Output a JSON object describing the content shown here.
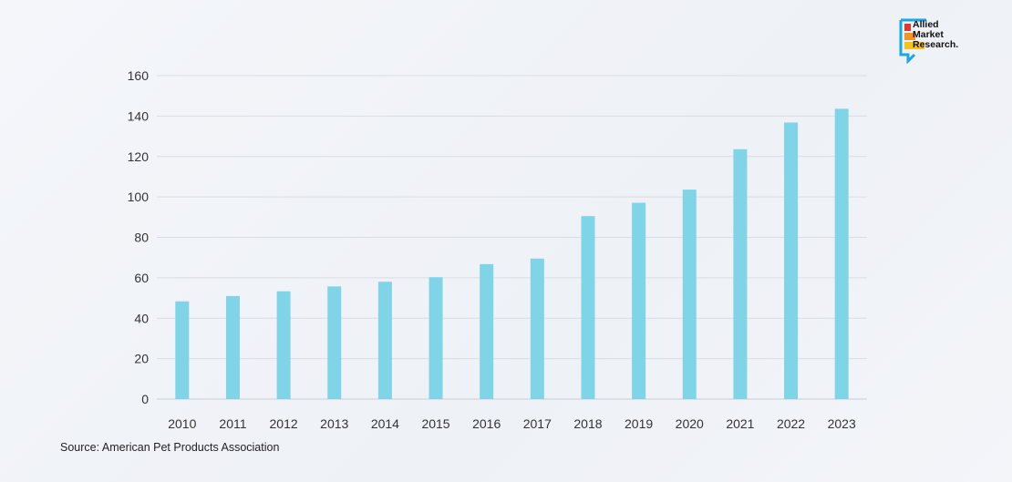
{
  "chart_data": {
    "type": "bar",
    "title": "",
    "xlabel": "",
    "ylabel": "",
    "categories": [
      "2010",
      "2011",
      "2012",
      "2013",
      "2014",
      "2015",
      "2016",
      "2017",
      "2018",
      "2019",
      "2020",
      "2021",
      "2022",
      "2023"
    ],
    "values": [
      48.35,
      50.96,
      53.33,
      55.72,
      58.04,
      60.28,
      66.75,
      69.51,
      90.5,
      97.1,
      103.6,
      123.6,
      136.8,
      143.6
    ],
    "ylim": [
      0,
      160
    ],
    "yticks": [
      0,
      20,
      40,
      60,
      80,
      100,
      120,
      140,
      160
    ],
    "grid": true,
    "bar_color": "#7fd4e8"
  },
  "source": "Source: American Pet Products Association",
  "logo": {
    "lines": [
      "Allied",
      "Market",
      "Research."
    ]
  }
}
